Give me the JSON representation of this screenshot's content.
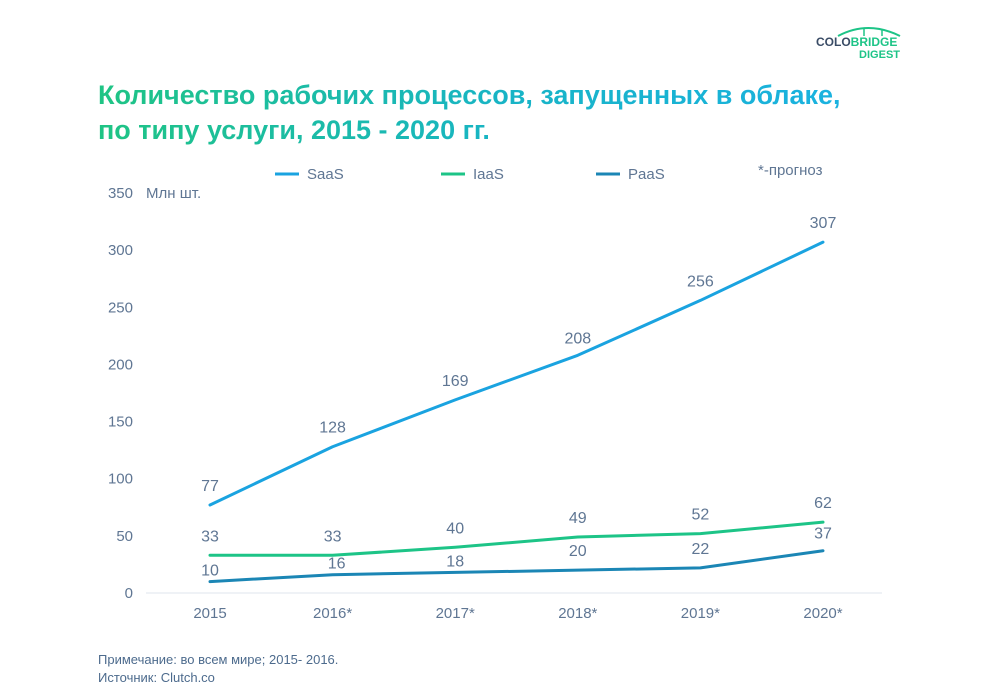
{
  "brand": {
    "part1": "COLO",
    "part2": "BRIDGE",
    "part3": "DIGEST"
  },
  "title": {
    "line1": "Количество рабочих процессов, запущенных в облаке,",
    "line2": "по типу услуги, 2015 - 2020 гг."
  },
  "chart_data": {
    "type": "line",
    "ylabel": "Млн шт.",
    "ylim": [
      0,
      350
    ],
    "yticks": [
      0,
      50,
      100,
      150,
      200,
      250,
      300,
      350
    ],
    "categories": [
      "2015",
      "2016*",
      "2017*",
      "2018*",
      "2019*",
      "2020*"
    ],
    "series": [
      {
        "name": "SaaS",
        "color": "#1aa3e0",
        "values": [
          77,
          128,
          169,
          208,
          256,
          307
        ],
        "labels": [
          "77",
          "128",
          "169",
          "208",
          "256",
          "307"
        ]
      },
      {
        "name": "IaaS",
        "color": "#1dc487",
        "values": [
          33,
          33,
          40,
          49,
          52,
          62
        ],
        "labels": [
          "33",
          "33",
          "40",
          "49",
          "52",
          "62"
        ]
      },
      {
        "name": "PaaS",
        "color": "#1b86b5",
        "values": [
          10,
          16,
          18,
          20,
          22,
          37
        ],
        "labels": [
          "10",
          "16",
          "18",
          "20",
          "22",
          "37"
        ]
      }
    ],
    "forecast_note": "*-прогноз",
    "grid": false,
    "legend": "top"
  },
  "footer": {
    "note": "Примечание: во всем мире; 2015- 2016.",
    "source": "Источник: Clutch.co"
  }
}
